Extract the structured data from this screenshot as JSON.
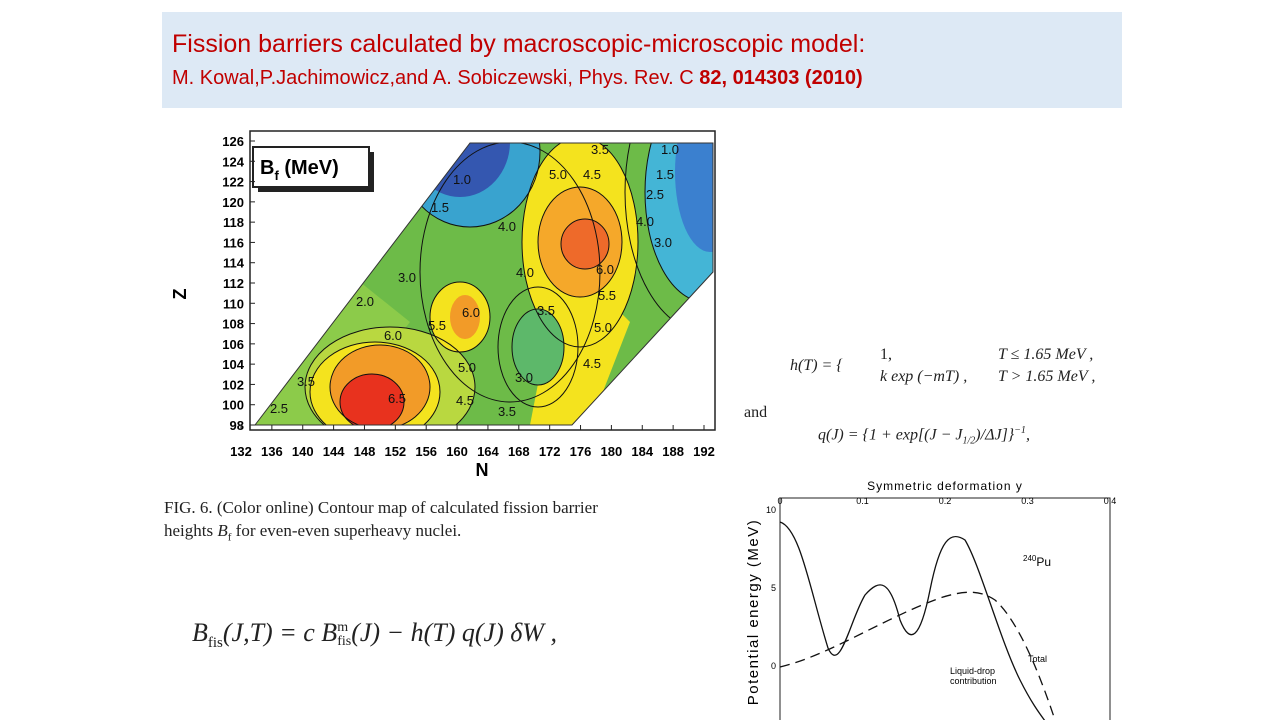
{
  "header": {
    "title": "Fission barriers calculated by macroscopic-microscopic model:",
    "citation": "M. Kowal,P.Jachimowicz,and A. Sobiczewski, Phys. Rev. C ",
    "citation_bold": "82, 014303 (2010)"
  },
  "contour_map": {
    "legend": "B",
    "legend_sub": "f",
    "legend_unit": " (MeV)",
    "y_label": "Z",
    "x_label": "N",
    "yticks": [
      98,
      100,
      102,
      104,
      106,
      108,
      110,
      112,
      114,
      116,
      118,
      120,
      122,
      124,
      126
    ],
    "xticks": [
      132,
      136,
      140,
      144,
      148,
      152,
      156,
      160,
      164,
      168,
      172,
      176,
      180,
      184,
      188,
      192
    ],
    "contour_labels": [
      "3.5",
      "1.0",
      "1.0",
      "5.0",
      "4.5",
      "1.5",
      "2.5",
      "1.5",
      "4.0",
      "4.0",
      "3.0",
      "6.0",
      "4.0",
      "3.0",
      "5.5",
      "2.0",
      "6.0",
      "5.5",
      "3.5",
      "5.0",
      "6.0",
      "5.0",
      "4.5",
      "3.0",
      "3.5",
      "4.5",
      "6.5",
      "2.5",
      "3.5"
    ]
  },
  "caption": {
    "line1": "FIG. 6. (Color online) Contour map of calculated fission barrier",
    "line2_a": "heights ",
    "line2_b": "B",
    "line2_sub": "f",
    "line2_c": " for even-even superheavy nuclei."
  },
  "formula": {
    "lhs": "B",
    "lhs_sub": "fis",
    "lhs_args": "(J,T) = c B",
    "sup": "m",
    "sub": "fis",
    "rest": "(J) − h(T) q(J) δW ,"
  },
  "equations": {
    "h_lhs": "h(T) = {",
    "case1": "1,",
    "cond1": "T ≤ 1.65 MeV ,",
    "case2": "k exp (−mT) ,",
    "cond2": "T > 1.65 MeV ,",
    "and": "and",
    "q_a": "q(J) = {1 + exp[(J − J",
    "q_sub": "1/2",
    "q_b": ")/ΔJ]}",
    "q_sup": "−1",
    "q_c": ","
  },
  "energy_plot": {
    "x_title": "Symmetric deformation y",
    "xticks": [
      "0",
      "0.1",
      "0.2",
      "0.3",
      "0.4"
    ],
    "y_title": "Potential energy (MeV)",
    "yticks": [
      "10",
      "5",
      "0"
    ],
    "nucleus_mass": "240",
    "nucleus": "Pu",
    "total": "Total",
    "ld1": "Liquid-drop",
    "ld2": "contribution"
  }
}
